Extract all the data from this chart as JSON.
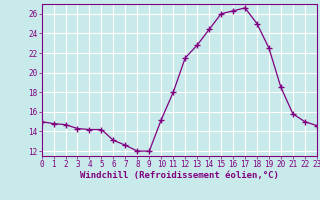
{
  "x": [
    0,
    1,
    2,
    3,
    4,
    5,
    6,
    7,
    8,
    9,
    10,
    11,
    12,
    13,
    14,
    15,
    16,
    17,
    18,
    19,
    20,
    21,
    22,
    23
  ],
  "y": [
    15.0,
    14.8,
    14.7,
    14.3,
    14.2,
    14.2,
    13.1,
    12.6,
    12.0,
    12.0,
    15.2,
    18.0,
    21.5,
    22.8,
    24.4,
    26.0,
    26.3,
    26.6,
    25.0,
    22.5,
    18.5,
    15.8,
    15.0,
    14.6
  ],
  "line_color": "#800080",
  "marker": "+",
  "marker_size": 4,
  "bg_color": "#c8eaea",
  "grid_color": "#ffffff",
  "xlabel": "Windchill (Refroidissement éolien,°C)",
  "xlim": [
    0,
    23
  ],
  "ylim": [
    11.5,
    27
  ],
  "yticks": [
    12,
    14,
    16,
    18,
    20,
    22,
    24,
    26
  ],
  "xticks": [
    0,
    1,
    2,
    3,
    4,
    5,
    6,
    7,
    8,
    9,
    10,
    11,
    12,
    13,
    14,
    15,
    16,
    17,
    18,
    19,
    20,
    21,
    22,
    23
  ],
  "tick_color": "#800080",
  "label_color": "#800080",
  "tick_fontsize": 5.5,
  "xlabel_fontsize": 6.5
}
